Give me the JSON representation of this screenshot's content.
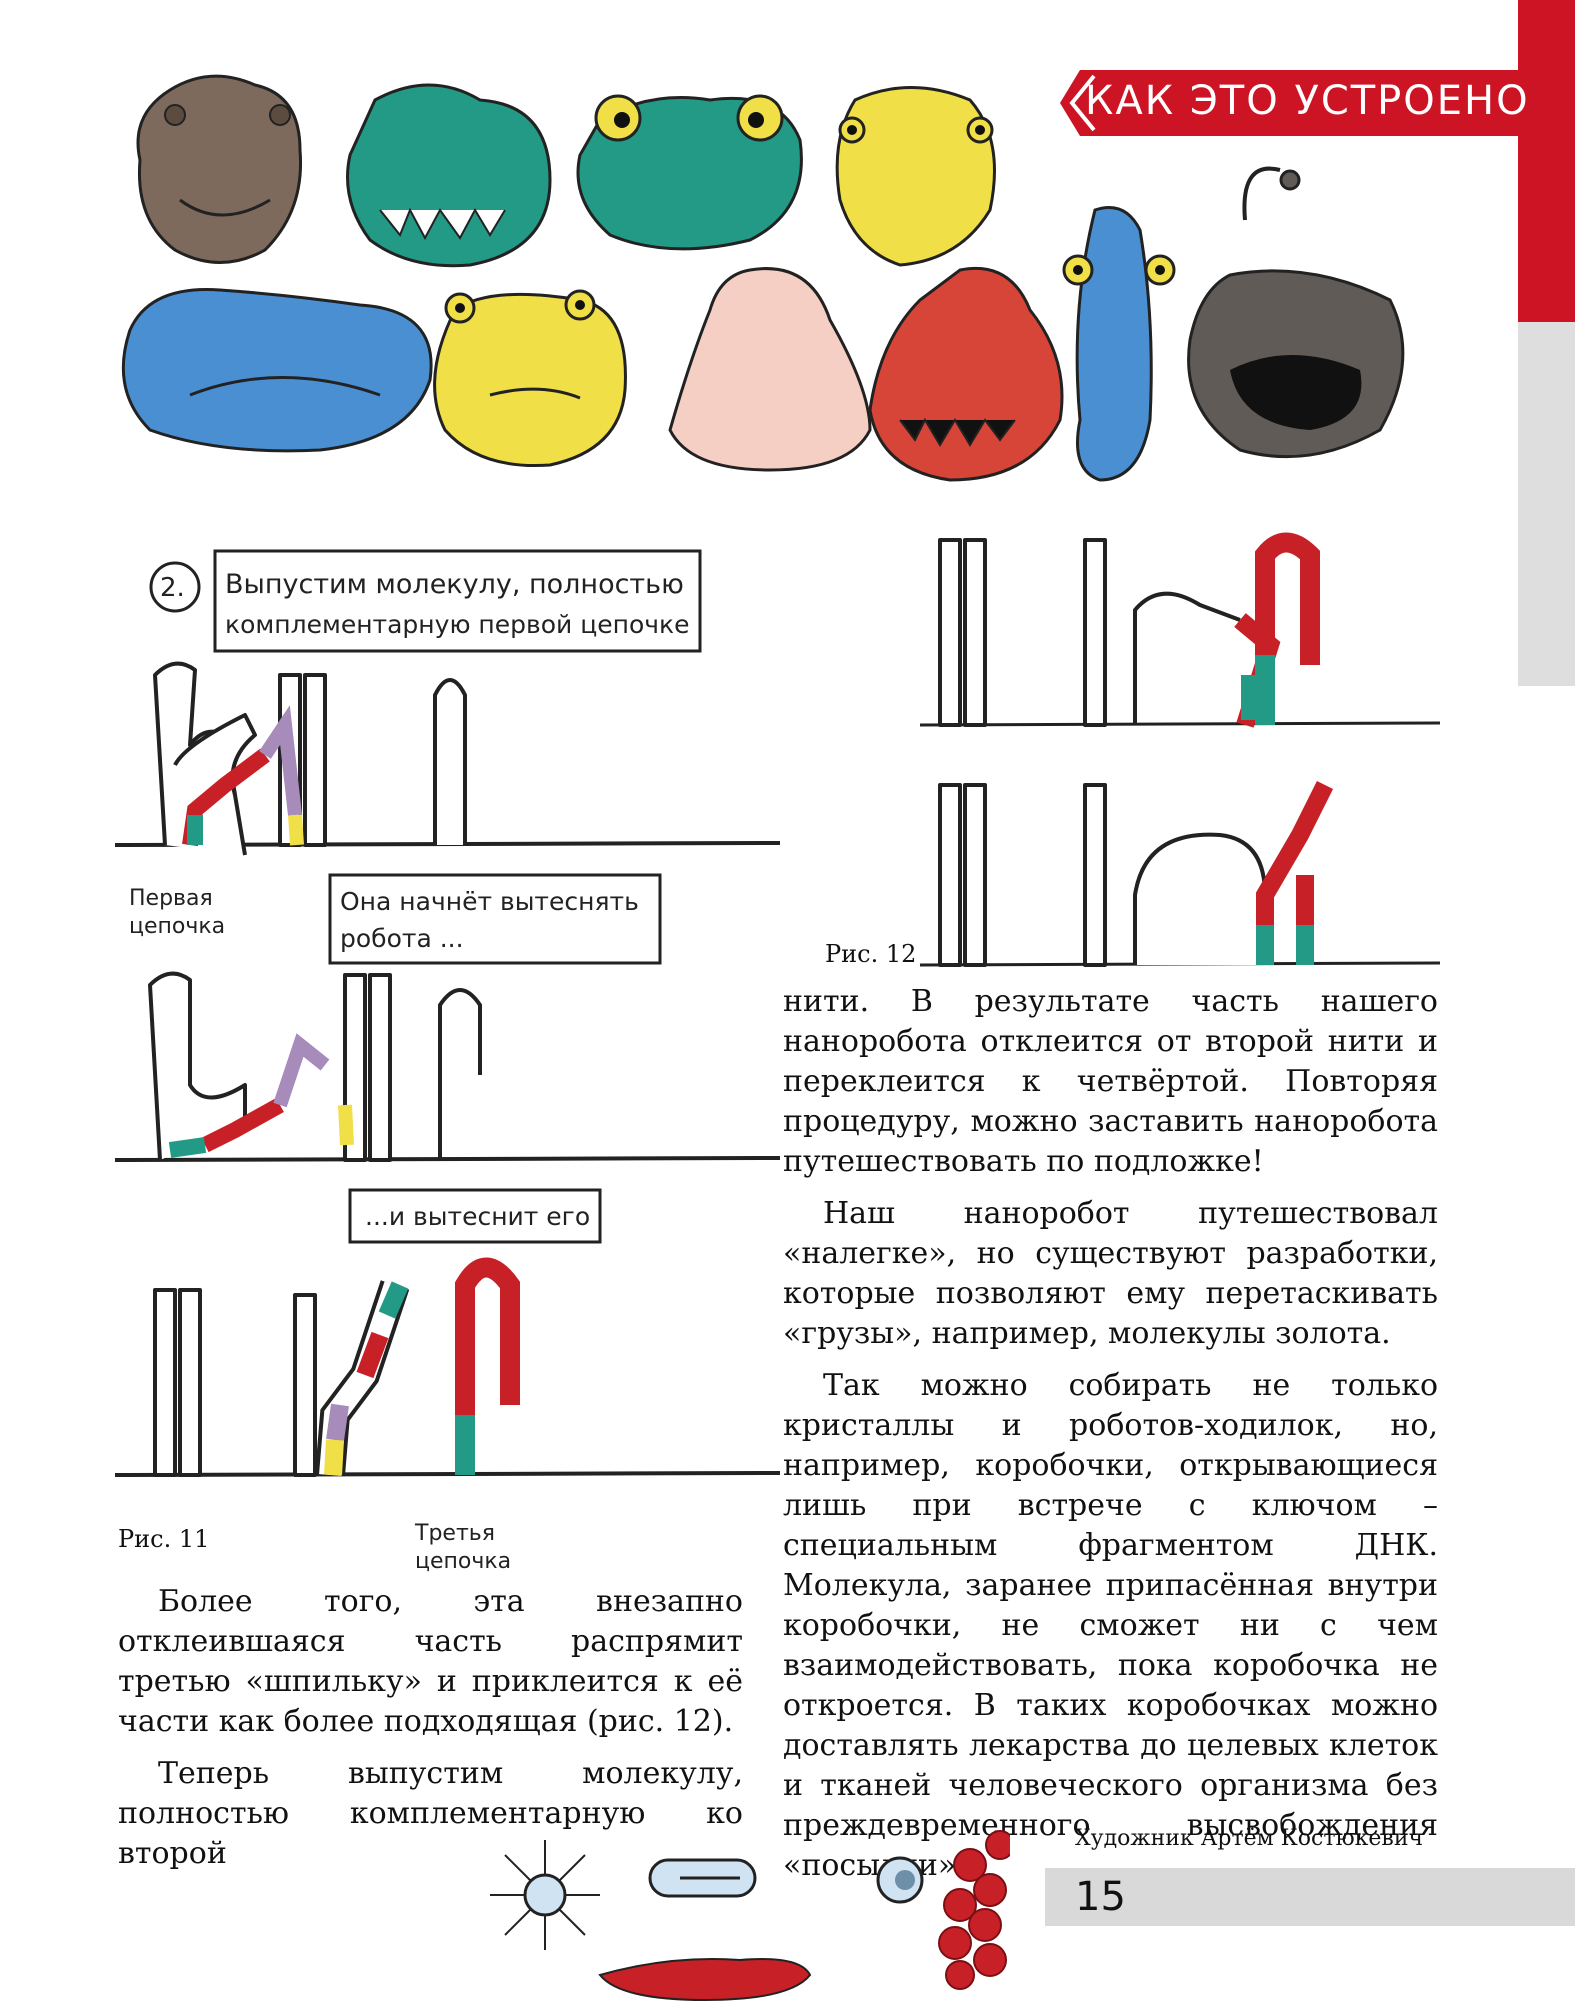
{
  "section": {
    "title": "КАК ЭТО УСТРОЕНО",
    "accent_color": "#cc1424"
  },
  "header_illustration": {
    "creatures": [
      {
        "icon": "hippo-head-icon",
        "color": "#7d6a5c"
      },
      {
        "icon": "crocodile-head-icon",
        "color": "#239a86"
      },
      {
        "icon": "frog-head-icon",
        "color": "#239a86"
      },
      {
        "icon": "turtle-head-icon",
        "color": "#f1df47"
      },
      {
        "icon": "blue-blob-fish-icon",
        "color": "#4a8fd2"
      },
      {
        "icon": "yellow-toad-icon",
        "color": "#f1df47"
      },
      {
        "icon": "blobfish-icon",
        "color": "#f6cfc4"
      },
      {
        "icon": "red-fish-icon",
        "color": "#d64537"
      },
      {
        "icon": "tall-blue-fish-icon",
        "color": "#4a8fd2"
      },
      {
        "icon": "anglerfish-icon",
        "color": "#615b57"
      }
    ]
  },
  "fig11": {
    "step_number": "2.",
    "step_text_line1": "Выпустим молекулу, полностью",
    "step_text_line2": "комплементарную первой цепочке",
    "first_chain_line1": "Первая",
    "first_chain_line2": "цепочка",
    "bubble1_line1": "Она начнёт вытеснять",
    "bubble1_line2": "робота ...",
    "bubble2": "...и вытеснит его",
    "third_chain_line1": "Третья",
    "third_chain_line2": "цепочка",
    "caption": "Рис. 11"
  },
  "fig12": {
    "caption": "Рис. 12"
  },
  "left_column": {
    "paragraphs": [
      "Более того, эта внезапно отклеившаяся часть распрямит третью «шпильку» и приклеится к её части как более подходящая (рис. 12).",
      "Теперь выпустим молекулу, полностью комплементарную ко второй"
    ]
  },
  "right_column": {
    "paragraphs": [
      "нити. В результате часть нашего наноробота отклеится от второй нити и переклеится к четвёртой. Повторяя процедуру, можно заставить наноробота путешествовать по подложке!",
      "Наш наноробот путешествовал «налегке», но существуют разработки, которые позволяют ему перетаскивать «грузы», например, молекулы золота.",
      "Так можно собирать не только кристаллы и роботов-ходилок, но, например, коробочки, открывающиеся лишь при встрече с ключом – специальным фрагментом ДНК. Молекула, заранее припасённая внутри коробочки, не сможет ни с чем взаимодействовать, пока коробочка не откроется. В таких коробочках можно доставлять лекарства до целевых клеток и тканей человеческого организма без преждевременного высвобождения «посылки»."
    ]
  },
  "credit": "Художник Артём Костюкевич",
  "page_number": "15",
  "footer_illustration": {
    "items": [
      "virus-particle-icon",
      "capsule-robot-icon",
      "tissue-blob-icon",
      "cell-cluster-icon"
    ],
    "tissue_color": "#c82027"
  }
}
